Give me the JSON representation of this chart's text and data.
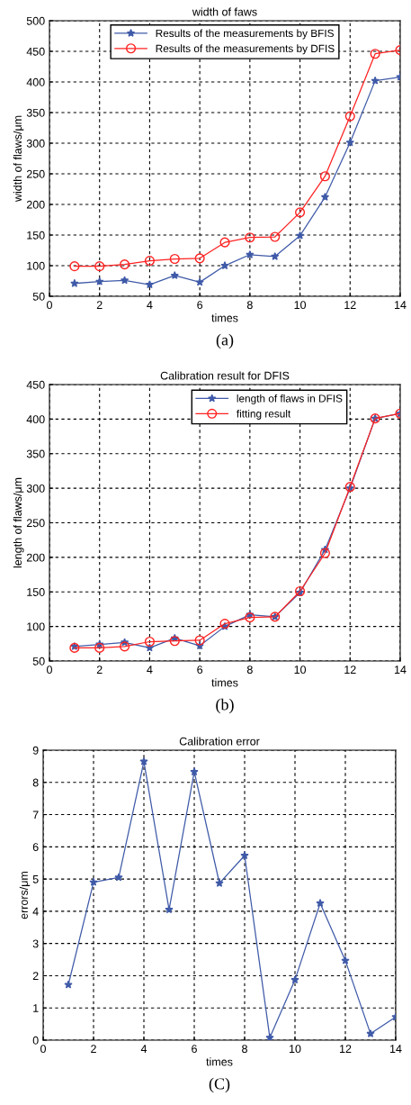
{
  "chart_data": [
    {
      "type": "line",
      "title": "width of faws",
      "xlabel": "times",
      "ylabel": "width of flaws/μm",
      "annotations": [
        "(a)"
      ],
      "x": [
        1,
        2,
        3,
        4,
        5,
        6,
        7,
        8,
        9,
        10,
        11,
        12,
        13,
        14
      ],
      "series": [
        {
          "name": "Results of the measurements by BFIS",
          "color": "#3f5aa8",
          "marker": "star",
          "values": [
            71,
            74,
            76,
            69,
            84,
            73,
            100,
            118,
            115,
            149,
            212,
            301,
            402,
            408
          ]
        },
        {
          "name": "Results of the measurements by DFIS",
          "color": "#ff2020",
          "marker": "circle",
          "values": [
            99,
            99,
            102,
            108,
            111,
            112,
            138,
            146,
            147,
            187,
            246,
            344,
            446,
            452
          ]
        }
      ],
      "xlim": [
        0,
        14
      ],
      "xticks": [
        0,
        2,
        4,
        6,
        8,
        10,
        12,
        14
      ],
      "ylim": [
        50,
        500
      ],
      "yticks": [
        50,
        100,
        150,
        200,
        250,
        300,
        350,
        400,
        450,
        500
      ],
      "grid": true,
      "legend": "top",
      "line_style": "solid"
    },
    {
      "type": "line",
      "title": "Calibration result for DFIS",
      "xlabel": "times",
      "ylabel": "length of flaws/μm",
      "annotations": [
        "(b)"
      ],
      "x": [
        1,
        2,
        3,
        4,
        5,
        6,
        7,
        8,
        9,
        10,
        11,
        12,
        13,
        14
      ],
      "series": [
        {
          "name": "length of flaws in DFIS",
          "color": "#3f5aa8",
          "marker": "star",
          "values": [
            71,
            74,
            77,
            69,
            83,
            72,
            100,
            117,
            114,
            149,
            211,
            300,
            401,
            408
          ]
        },
        {
          "name": "fitting result",
          "color": "#ff2020",
          "marker": "circle",
          "values": [
            69,
            69,
            71,
            78,
            79,
            80,
            104,
            113,
            114,
            151,
            206,
            302,
            401,
            408
          ]
        }
      ],
      "xlim": [
        0,
        14
      ],
      "xticks": [
        0,
        2,
        4,
        6,
        8,
        10,
        12,
        14
      ],
      "ylim": [
        50,
        450
      ],
      "yticks": [
        50,
        100,
        150,
        200,
        250,
        300,
        350,
        400,
        450
      ],
      "grid": true,
      "legend": "top right",
      "line_style": "solid"
    },
    {
      "type": "line",
      "title": "Calibration error",
      "xlabel": "times",
      "ylabel": "errors/μm",
      "annotations": [
        "(C)"
      ],
      "x": [
        1,
        2,
        3,
        4,
        5,
        6,
        7,
        8,
        9,
        10,
        11,
        12,
        13,
        14
      ],
      "series": [
        {
          "color": "#3f5aa8",
          "marker": "star",
          "values": [
            1.72,
            4.9,
            5.05,
            8.65,
            4.05,
            8.33,
            4.87,
            5.73,
            0.08,
            1.87,
            4.25,
            2.47,
            0.2,
            0.72
          ]
        }
      ],
      "xlim": [
        0,
        14
      ],
      "xticks": [
        0,
        2,
        4,
        6,
        8,
        10,
        12,
        14
      ],
      "ylim": [
        0,
        9
      ],
      "yticks": [
        0,
        1,
        2,
        3,
        4,
        5,
        6,
        7,
        8,
        9
      ],
      "grid": true,
      "line_style": "solid"
    }
  ]
}
